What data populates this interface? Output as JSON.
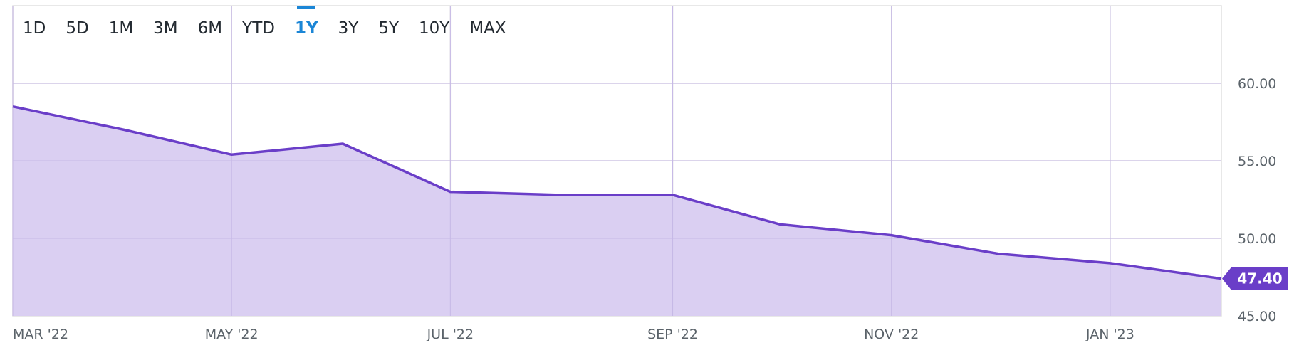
{
  "range_selector": {
    "options": [
      "1D",
      "5D",
      "1M",
      "3M",
      "6M",
      "YTD",
      "1Y",
      "3Y",
      "5Y",
      "10Y",
      "MAX"
    ],
    "active": "1Y"
  },
  "colors": {
    "line": "#6a3ec8",
    "fill": "#d8ccf1",
    "grid": "#e1e1e1",
    "active": "#1b86d6",
    "badge": "#6a3ec8"
  },
  "chart_data": {
    "type": "area",
    "x": [
      "2022-03-01",
      "2022-04-01",
      "2022-05-01",
      "2022-06-01",
      "2022-07-01",
      "2022-08-01",
      "2022-09-01",
      "2022-10-01",
      "2022-11-01",
      "2022-12-01",
      "2023-01-01",
      "2023-02-01"
    ],
    "values": [
      58.5,
      57.0,
      55.4,
      56.1,
      53.0,
      52.8,
      52.8,
      50.9,
      50.2,
      49.0,
      48.4,
      47.4
    ],
    "xticks": [
      {
        "x": "2022-03-01",
        "label": "MAR '22"
      },
      {
        "x": "2022-05-01",
        "label": "MAY '22"
      },
      {
        "x": "2022-07-01",
        "label": "JUL '22"
      },
      {
        "x": "2022-09-01",
        "label": "SEP '22"
      },
      {
        "x": "2022-11-01",
        "label": "NOV '22"
      },
      {
        "x": "2023-01-01",
        "label": "JAN '23"
      }
    ],
    "yticks": [
      "45.00",
      "50.00",
      "55.00",
      "60.00"
    ],
    "ylim": [
      45,
      65
    ],
    "last_value_label": "47.40",
    "grid": true
  }
}
